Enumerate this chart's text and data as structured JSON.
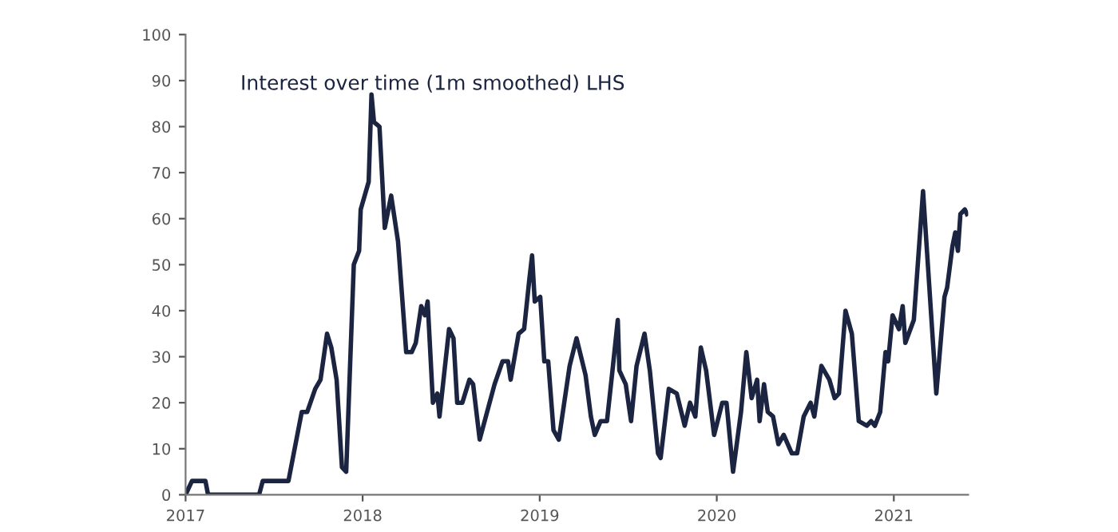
{
  "chart_data": {
    "type": "line",
    "annotations": [
      "Interest over time (1m smoothed) LHS"
    ],
    "x": [
      2017.0,
      2017.036,
      2017.112,
      2017.127,
      2017.415,
      2017.436,
      2017.581,
      2017.611,
      2017.656,
      2017.687,
      2017.732,
      2017.762,
      2017.799,
      2017.823,
      2017.853,
      2017.883,
      2017.907,
      2017.95,
      2017.98,
      2017.989,
      2018.034,
      2018.05,
      2018.064,
      2018.095,
      2018.125,
      2018.161,
      2018.2,
      2018.246,
      2018.277,
      2018.3,
      2018.331,
      2018.352,
      2018.367,
      2018.397,
      2018.422,
      2018.434,
      2018.488,
      2018.513,
      2018.534,
      2018.563,
      2018.603,
      2018.624,
      2018.661,
      2018.745,
      2018.79,
      2018.821,
      2018.836,
      2018.881,
      2018.912,
      2018.942,
      2018.957,
      2018.972,
      2019.003,
      2019.026,
      2019.048,
      2019.078,
      2019.108,
      2019.169,
      2019.208,
      2019.259,
      2019.289,
      2019.311,
      2019.344,
      2019.38,
      2019.411,
      2019.441,
      2019.45,
      2019.486,
      2019.516,
      2019.547,
      2019.592,
      2019.622,
      2019.668,
      2019.683,
      2019.729,
      2019.774,
      2019.819,
      2019.849,
      2019.879,
      2019.91,
      2019.94,
      2019.985,
      2020.031,
      2020.055,
      2020.092,
      2020.137,
      2020.167,
      2020.197,
      2020.228,
      2020.242,
      2020.267,
      2020.288,
      2020.318,
      2020.348,
      2020.378,
      2020.424,
      2020.454,
      2020.491,
      2020.53,
      2020.551,
      2020.591,
      2020.636,
      2020.666,
      2020.69,
      2020.727,
      2020.763,
      2020.802,
      2020.847,
      2020.872,
      2020.893,
      2020.923,
      2020.953,
      2020.968,
      2020.993,
      2021.029,
      2021.05,
      2021.065,
      2021.113,
      2021.165,
      2021.24,
      2021.286,
      2021.301,
      2021.331,
      2021.347,
      2021.362,
      2021.376,
      2021.401,
      2021.413
    ],
    "series": [
      {
        "color": "#1b2440",
        "values": [
          0,
          3,
          3,
          0,
          0,
          3,
          3,
          9,
          18,
          18,
          23,
          25,
          35,
          32,
          25,
          6,
          5,
          50,
          53,
          62,
          68,
          87,
          81,
          80,
          58,
          65,
          55,
          31,
          31,
          33,
          41,
          39,
          42,
          20,
          22,
          17,
          36,
          34,
          20,
          20,
          25,
          24,
          12,
          24,
          29,
          29,
          25,
          35,
          36,
          47,
          52,
          42,
          43,
          29,
          29,
          14,
          12,
          28,
          34,
          26,
          17,
          13,
          16,
          16,
          27,
          38,
          27,
          24,
          16,
          28,
          35,
          27,
          9,
          8,
          23,
          22,
          15,
          20,
          17,
          32,
          27,
          13,
          20,
          20,
          5,
          18,
          31,
          21,
          25,
          16,
          24,
          18,
          17,
          11,
          13,
          9,
          9,
          17,
          20,
          17,
          28,
          25,
          21,
          22,
          40,
          35,
          16,
          15,
          16,
          15,
          18,
          31,
          29,
          39,
          36,
          41,
          33,
          38,
          66,
          22,
          43,
          45,
          54,
          57,
          53,
          61,
          62,
          61
        ]
      }
    ],
    "xlim": [
      2017,
      2021.42
    ],
    "ylim": [
      0,
      100
    ],
    "xticks": [
      2017,
      2018,
      2019,
      2020,
      2021
    ],
    "yticks": [
      0,
      10,
      20,
      30,
      40,
      50,
      60,
      70,
      80,
      90,
      100
    ],
    "grid": false,
    "line_style": "solid",
    "marker": "none"
  }
}
